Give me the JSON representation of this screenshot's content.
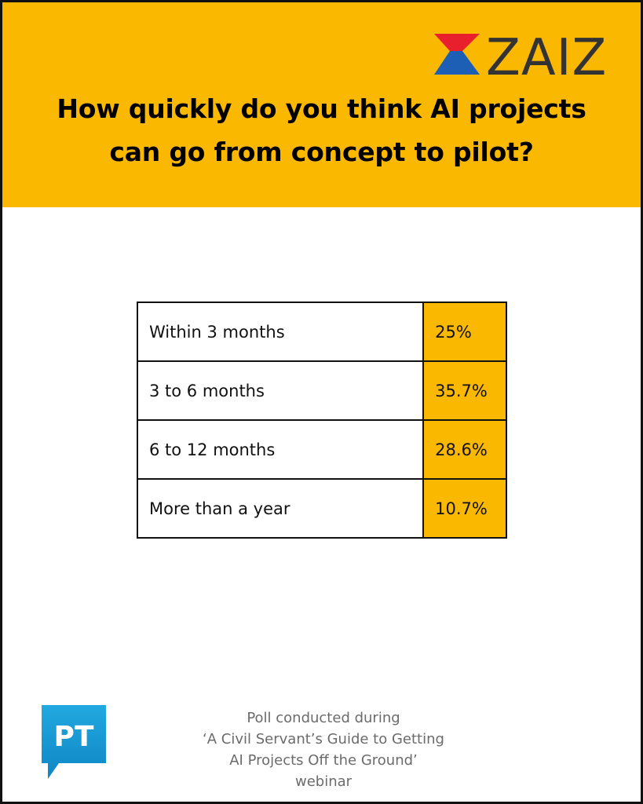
{
  "brand": {
    "logo_text": "ZAIZI",
    "colors": {
      "background_header": "#fbb800",
      "logo_red": "#e8202e",
      "logo_blue": "#1d5fb4",
      "logo_text": "#333333"
    }
  },
  "title": {
    "line1": "How quickly do you think AI projects",
    "line2": "can go from concept to pilot?"
  },
  "chart_data": {
    "type": "table",
    "categories": [
      "Within 3 months",
      "3 to 6 months",
      "6 to 12 months",
      "More than a year"
    ],
    "values": [
      25,
      35.7,
      28.6,
      10.7
    ],
    "value_labels": [
      "25%",
      "35.7%",
      "28.6%",
      "10.7%"
    ],
    "unit": "%",
    "title": "How quickly do you think AI projects can go from concept to pilot?"
  },
  "rows": [
    {
      "label": "Within 3 months",
      "value": "25%"
    },
    {
      "label": "3 to 6 months",
      "value": "35.7%"
    },
    {
      "label": "6 to 12 months",
      "value": "28.6%"
    },
    {
      "label": "More than a year",
      "value": "10.7%"
    }
  ],
  "publisher_logo": {
    "text": "PT",
    "color": "#1a9bd7"
  },
  "footnote": {
    "line1": "Poll conducted during",
    "line2": "‘A Civil Servant’s Guide to Getting",
    "line3": "AI Projects Off the Ground’",
    "line4": "webinar"
  }
}
